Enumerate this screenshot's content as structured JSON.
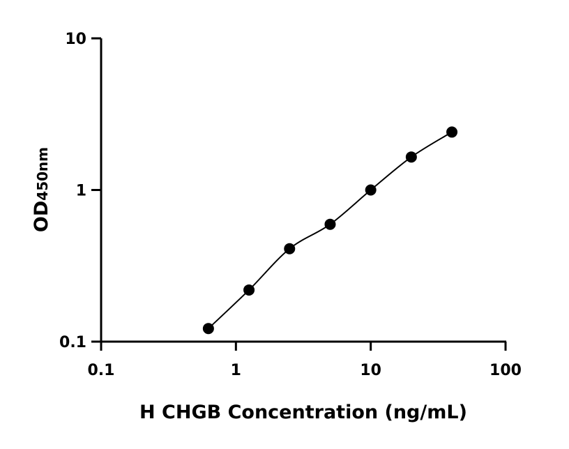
{
  "chart_data": {
    "type": "scatter",
    "title": "",
    "xlabel": "H CHGB Concentration (ng/mL)",
    "ylabel_main": "OD",
    "ylabel_sub": "450nm",
    "x_scale": "log",
    "y_scale": "log",
    "xlim": [
      0.1,
      100
    ],
    "ylim": [
      0.1,
      10
    ],
    "x_ticks": [
      "0.1",
      "1",
      "10",
      "100"
    ],
    "y_ticks": [
      "0.1",
      "1",
      "10"
    ],
    "grid": false,
    "fit_line": true,
    "marker_color": "#000000",
    "series": [
      {
        "x": [
          0.625,
          1.25,
          2.5,
          5,
          10,
          20,
          40
        ],
        "y": [
          0.122,
          0.219,
          0.41,
          0.594,
          1.0,
          1.65,
          2.41
        ]
      }
    ]
  }
}
